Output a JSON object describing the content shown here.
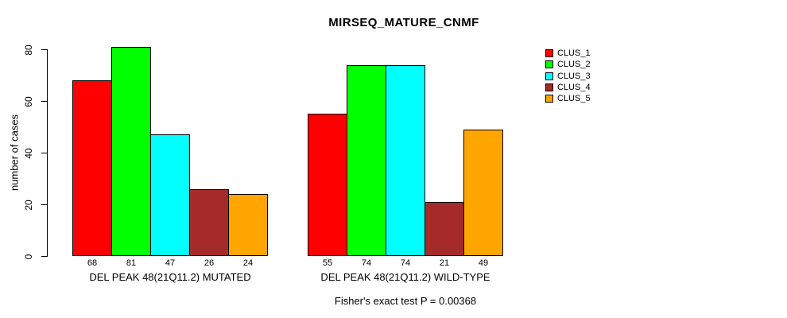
{
  "chart_data": {
    "type": "bar",
    "title": "MIRSEQ_MATURE_CNMF",
    "ylabel": "number of cases",
    "xlabel": "",
    "categories": [
      "DEL PEAK 48(21Q11.2) MUTATED",
      "DEL PEAK 48(21Q11.2) WILD-TYPE"
    ],
    "series": [
      {
        "name": "CLUS_1",
        "color": "#FF0000",
        "values": [
          68,
          55
        ]
      },
      {
        "name": "CLUS_2",
        "color": "#00FF00",
        "values": [
          81,
          74
        ]
      },
      {
        "name": "CLUS_3",
        "color": "#00FFFF",
        "values": [
          47,
          74
        ]
      },
      {
        "name": "CLUS_4",
        "color": "#A52A2A",
        "values": [
          26,
          21
        ]
      },
      {
        "name": "CLUS_5",
        "color": "#FFA500",
        "values": [
          24,
          49
        ]
      }
    ],
    "yticks": [
      0,
      20,
      40,
      60,
      80
    ],
    "ylim": [
      0,
      80
    ],
    "grid": false,
    "bar_value_labels_shown": true,
    "legend_position": "top-right",
    "annotation": "Fisher's exact test P = 0.00368"
  }
}
